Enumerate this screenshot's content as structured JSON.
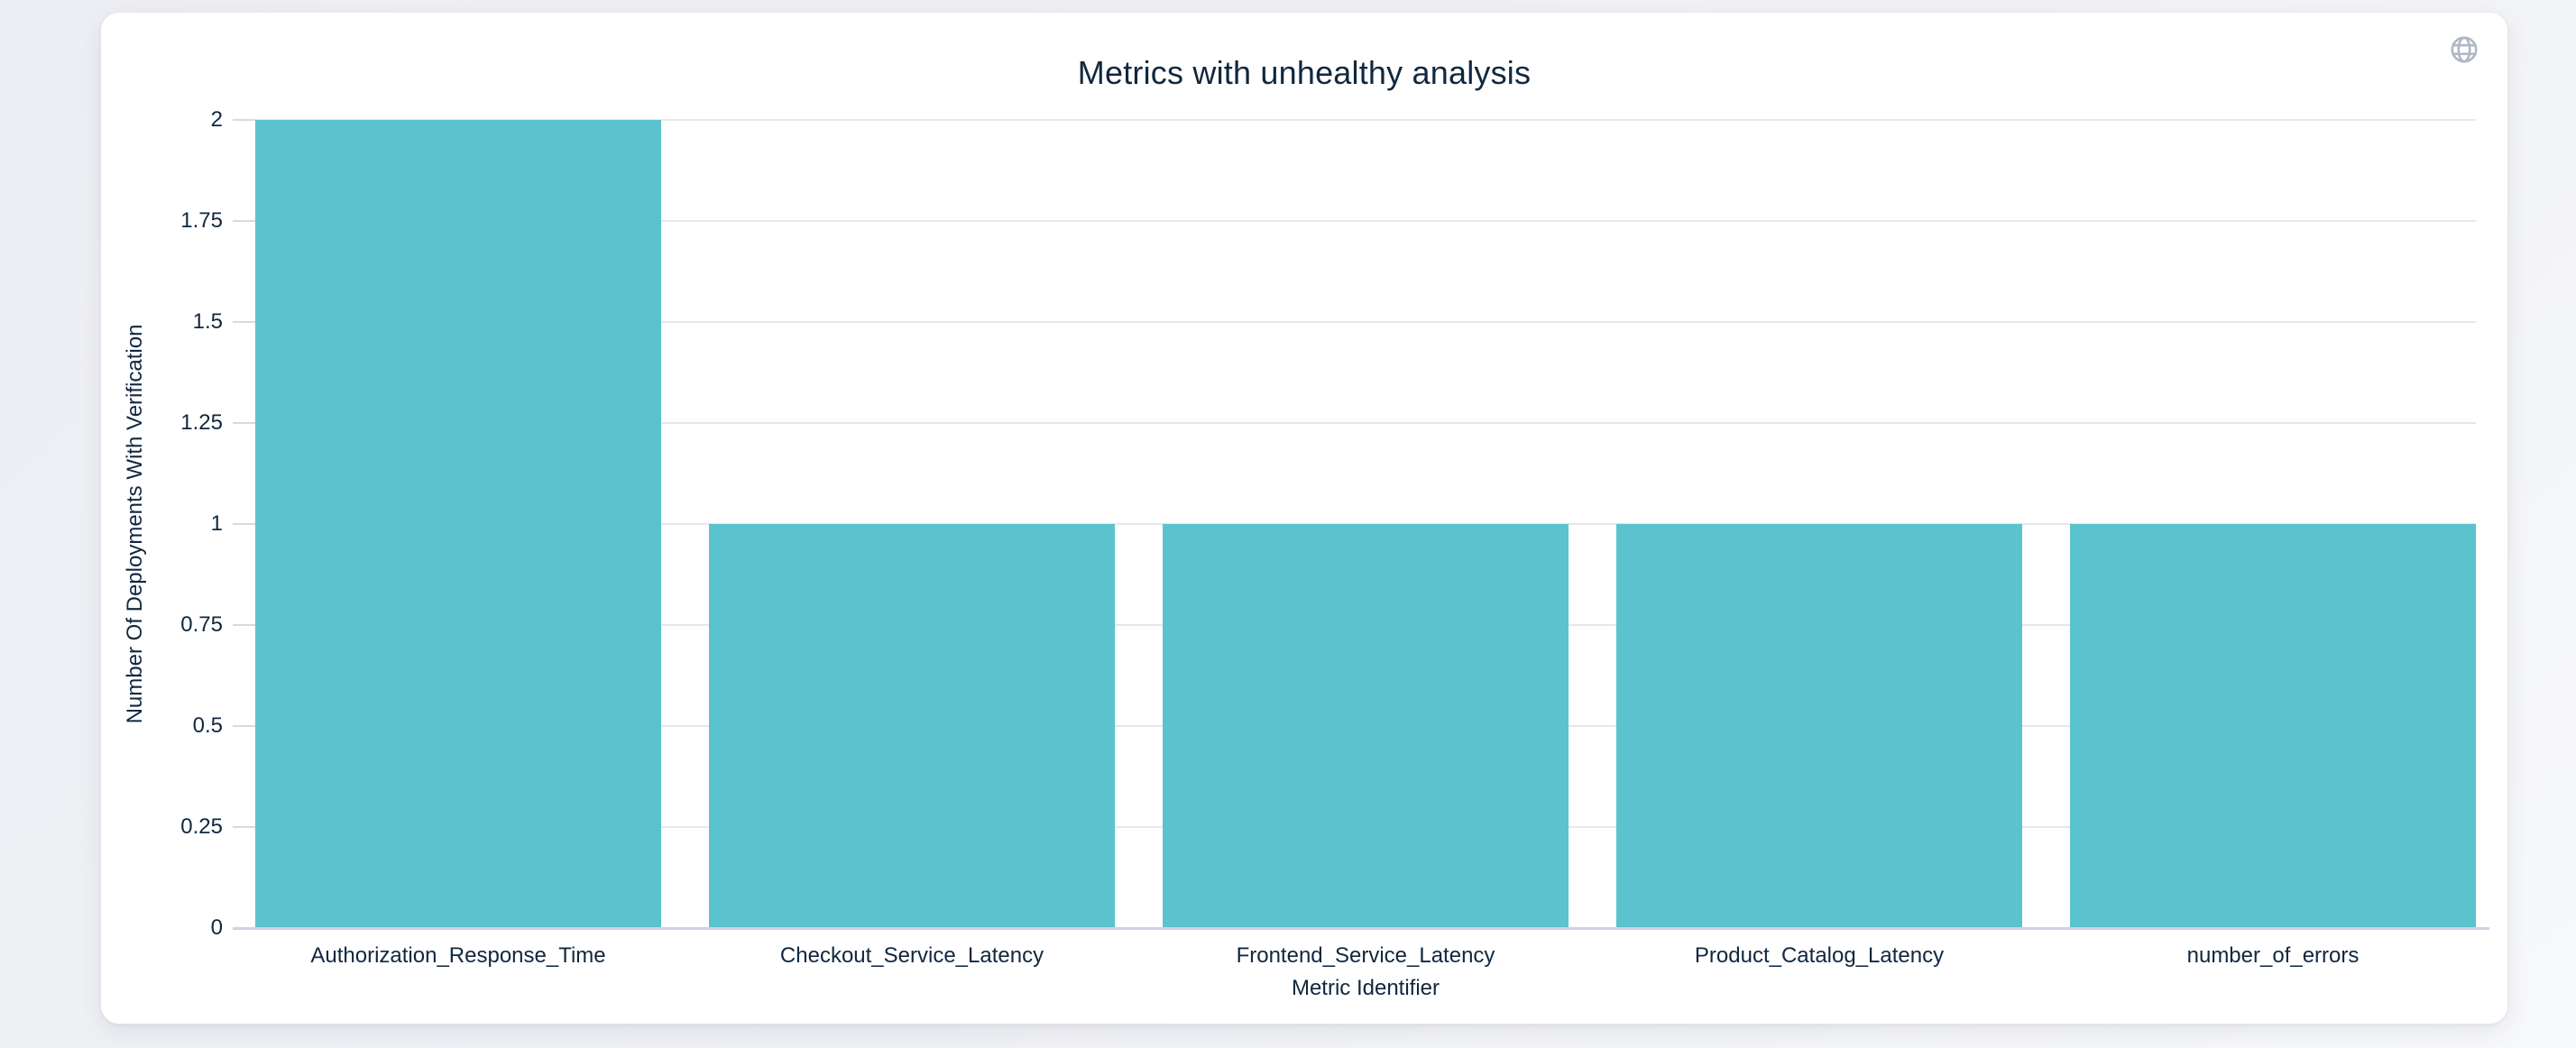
{
  "window": {
    "background_start": "#eceef3",
    "background_end": "#f7f8fa"
  },
  "card": {
    "background": "#ffffff"
  },
  "header": {
    "globe_icon": "globe"
  },
  "chart_data": {
    "type": "bar",
    "title": "Metrics with unhealthy analysis",
    "xlabel": "Metric Identifier",
    "ylabel": "Number Of Deployments With Verification",
    "categories": [
      "Authorization_Response_Time",
      "Checkout_Service_Latency",
      "Frontend_Service_Latency",
      "Product_Catalog_Latency",
      "number_of_errors"
    ],
    "values": [
      2,
      1,
      1,
      1,
      1
    ],
    "ylim": [
      0,
      2
    ],
    "yticks": [
      0,
      0.25,
      0.5,
      0.75,
      1,
      1.25,
      1.5,
      1.75,
      2
    ],
    "ytick_labels": [
      "0",
      "0.25",
      "0.5",
      "0.75",
      "1",
      "1.25",
      "1.5",
      "1.75",
      "2"
    ],
    "grid": true,
    "legend": false,
    "colors": {
      "bar": "#5bc3ce",
      "grid_line": "#e7e7ea",
      "axis_line": "#ccd3e6",
      "tick_line": "#d6dae3",
      "text": "#10273f",
      "icon": "#b0b6c4"
    }
  }
}
